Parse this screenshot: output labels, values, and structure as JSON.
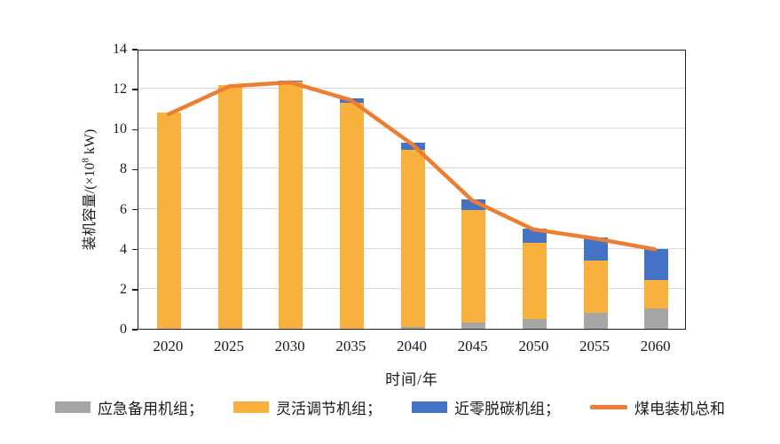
{
  "chart_data": {
    "type": "bar",
    "stacked": true,
    "title": "",
    "categories": [
      "2020",
      "2025",
      "2030",
      "2035",
      "2040",
      "2045",
      "2050",
      "2055",
      "2060"
    ],
    "series": [
      {
        "name": "应急备用机组",
        "color": "#a6a6a6",
        "values": [
          0,
          0,
          0,
          0,
          0.1,
          0.3,
          0.5,
          0.8,
          1.0
        ]
      },
      {
        "name": "灵活调节机组",
        "color": "#f7b13c",
        "values": [
          10.8,
          12.2,
          12.35,
          11.3,
          8.85,
          5.65,
          3.8,
          2.6,
          1.45
        ]
      },
      {
        "name": "近零脱碳机组",
        "color": "#4472c4",
        "values": [
          0,
          0,
          0.05,
          0.2,
          0.35,
          0.5,
          0.7,
          1.15,
          1.55
        ]
      }
    ],
    "line_series": {
      "name": "煤电装机总和",
      "color": "#ed7d31",
      "values": [
        10.8,
        12.2,
        12.4,
        11.5,
        9.3,
        6.45,
        5.0,
        4.55,
        4.0
      ]
    },
    "xlabel": "时间/年",
    "ylabel": "装机容量/(×10⁸ kW)",
    "ylim": [
      0,
      14
    ],
    "ytick_step": 2,
    "y_ticks": [
      "0",
      "2",
      "4",
      "6",
      "8",
      "10",
      "12",
      "14"
    ],
    "grid": true,
    "legend_position": "bottom"
  },
  "axes": {
    "x_title": "时间/年",
    "y_title_prefix": "装机容量/(×10",
    "y_title_sup": "8",
    "y_title_suffix": " kW)"
  },
  "legend": {
    "items": [
      {
        "label": "应急备用机组；",
        "swatch": "rect",
        "color": "#a6a6a6",
        "name": "legend-item-emergency-backup-units"
      },
      {
        "label": "灵活调节机组；",
        "swatch": "rect",
        "color": "#f7b13c",
        "name": "legend-item-flexible-regulation-units"
      },
      {
        "label": "近零脱碳机组；",
        "swatch": "rect",
        "color": "#4472c4",
        "name": "legend-item-near-zero-decarbonization-units"
      },
      {
        "label": "煤电装机总和",
        "swatch": "line",
        "color": "#ed7d31",
        "name": "legend-item-coal-power-capacity-total"
      }
    ]
  },
  "colors": {
    "gridline": "#d9d9d9",
    "axis": "#1f1f1f",
    "background": "#ffffff"
  }
}
